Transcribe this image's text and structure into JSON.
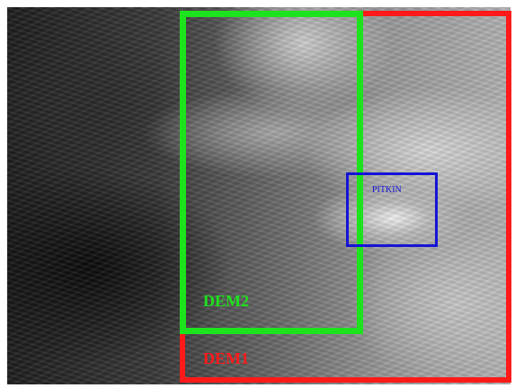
{
  "map": {
    "type": "grayscale elevation raster",
    "regions": [
      {
        "key": "dem1",
        "label": "DEM1",
        "color": "#ff1a1a"
      },
      {
        "key": "dem2",
        "label": "DEM2",
        "color": "#1de31d"
      },
      {
        "key": "pitkin",
        "label": "PITKIN",
        "color": "#1414d6"
      }
    ]
  }
}
